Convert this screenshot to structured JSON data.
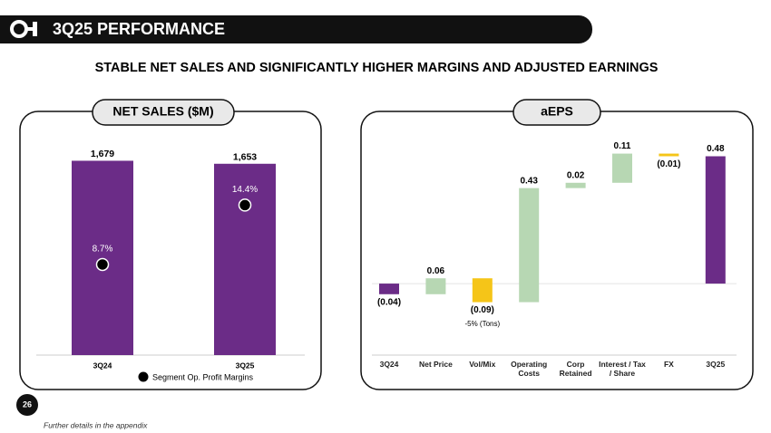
{
  "header": {
    "title": "3Q25 PERFORMANCE",
    "subtitle": "STABLE NET SALES AND SIGNIFICANTLY HIGHER MARGINS AND ADJUSTED EARNINGS"
  },
  "page_number": "26",
  "footnote": "Further details in the appendix",
  "chart_data": [
    {
      "type": "bar",
      "title": "NET SALES ($M)",
      "categories": [
        "3Q24",
        "3Q25"
      ],
      "series": [
        {
          "values": [
            1679,
            1653
          ],
          "value_labels": [
            "1,679",
            "1,653"
          ],
          "color": "#6b2c87"
        },
        {
          "name": "Segment Op. Profit Margins",
          "axis": "y2",
          "values": [
            8.7,
            14.4
          ],
          "value_labels": [
            "8.7%",
            "14.4%"
          ],
          "color": "#000000"
        }
      ],
      "ylim": [
        0,
        1800
      ],
      "y2lim": [
        0,
        20
      ]
    },
    {
      "type": "waterfall",
      "title": "aEPS",
      "categories": [
        "3Q24",
        "Net Price",
        "Vol/Mix",
        "Operating Costs",
        "Corp Retained",
        "Interest / Tax / Share",
        "FX",
        "3Q25"
      ],
      "values": [
        -0.04,
        0.06,
        -0.09,
        0.43,
        0.02,
        0.11,
        -0.01,
        0.48
      ],
      "value_labels": [
        "(0.04)",
        "0.06",
        "(0.09)",
        "0.43",
        "0.02",
        "0.11",
        "(0.01)",
        "0.48"
      ],
      "measures": [
        "absolute",
        "relative",
        "relative",
        "relative",
        "relative",
        "relative",
        "relative",
        "total"
      ],
      "colors": {
        "total": "#6b2c87",
        "increase": "#b7d7b3",
        "decrease": "#f5c518"
      },
      "annotations": [
        {
          "category": 2,
          "text": "-5% (Tons)"
        }
      ],
      "ylim": [
        -0.15,
        0.55
      ]
    }
  ]
}
